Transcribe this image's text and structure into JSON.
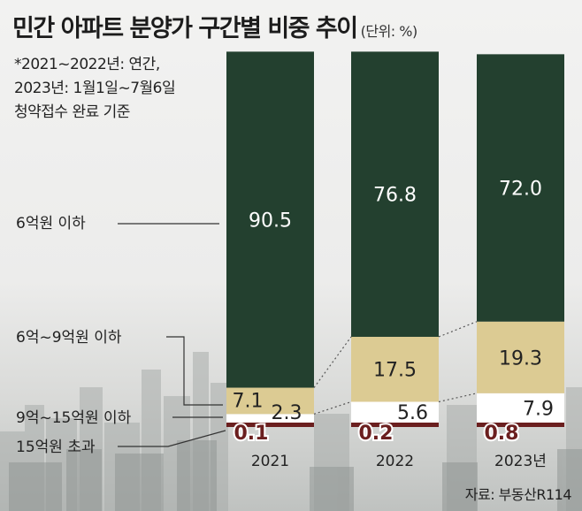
{
  "header": {
    "title": "민간 아파트 분양가 구간별 비중 추이",
    "unit": "(단위: %)"
  },
  "note": {
    "line1": "*2021~2022년: 연간,",
    "line2": "2023년: 1월1일~7월6일",
    "line3": "청약접수 완료 기준"
  },
  "source": "자료: 부동산R114",
  "colors": {
    "dark_green": "#23402f",
    "beige": "#dccb93",
    "white": "#ffffff",
    "dark_red": "#6b1f1f",
    "text_light": "#ffffff",
    "text_dark": "#222222"
  },
  "chart_data": {
    "type": "bar",
    "stacked": true,
    "title": "민간 아파트 분양가 구간별 비중 추이",
    "unit": "%",
    "categories": [
      "2021",
      "2022",
      "2023년"
    ],
    "series": [
      {
        "name": "15억원 초과",
        "values": [
          0.1,
          0.2,
          0.8
        ]
      },
      {
        "name": "9억~15억원 이하",
        "values": [
          2.3,
          5.6,
          7.9
        ]
      },
      {
        "name": "6억~9억원 이하",
        "values": [
          7.1,
          17.5,
          19.3
        ]
      },
      {
        "name": "6억원 이하",
        "values": [
          90.5,
          76.8,
          72.0
        ]
      }
    ],
    "value_labels": [
      [
        "0.1",
        "0.2",
        "0.8"
      ],
      [
        "2.3",
        "5.6",
        "7.9"
      ],
      [
        "7.1",
        "17.5",
        "19.3"
      ],
      [
        "90.5",
        "76.8",
        "72.0"
      ]
    ],
    "ylim": [
      0,
      100
    ]
  }
}
